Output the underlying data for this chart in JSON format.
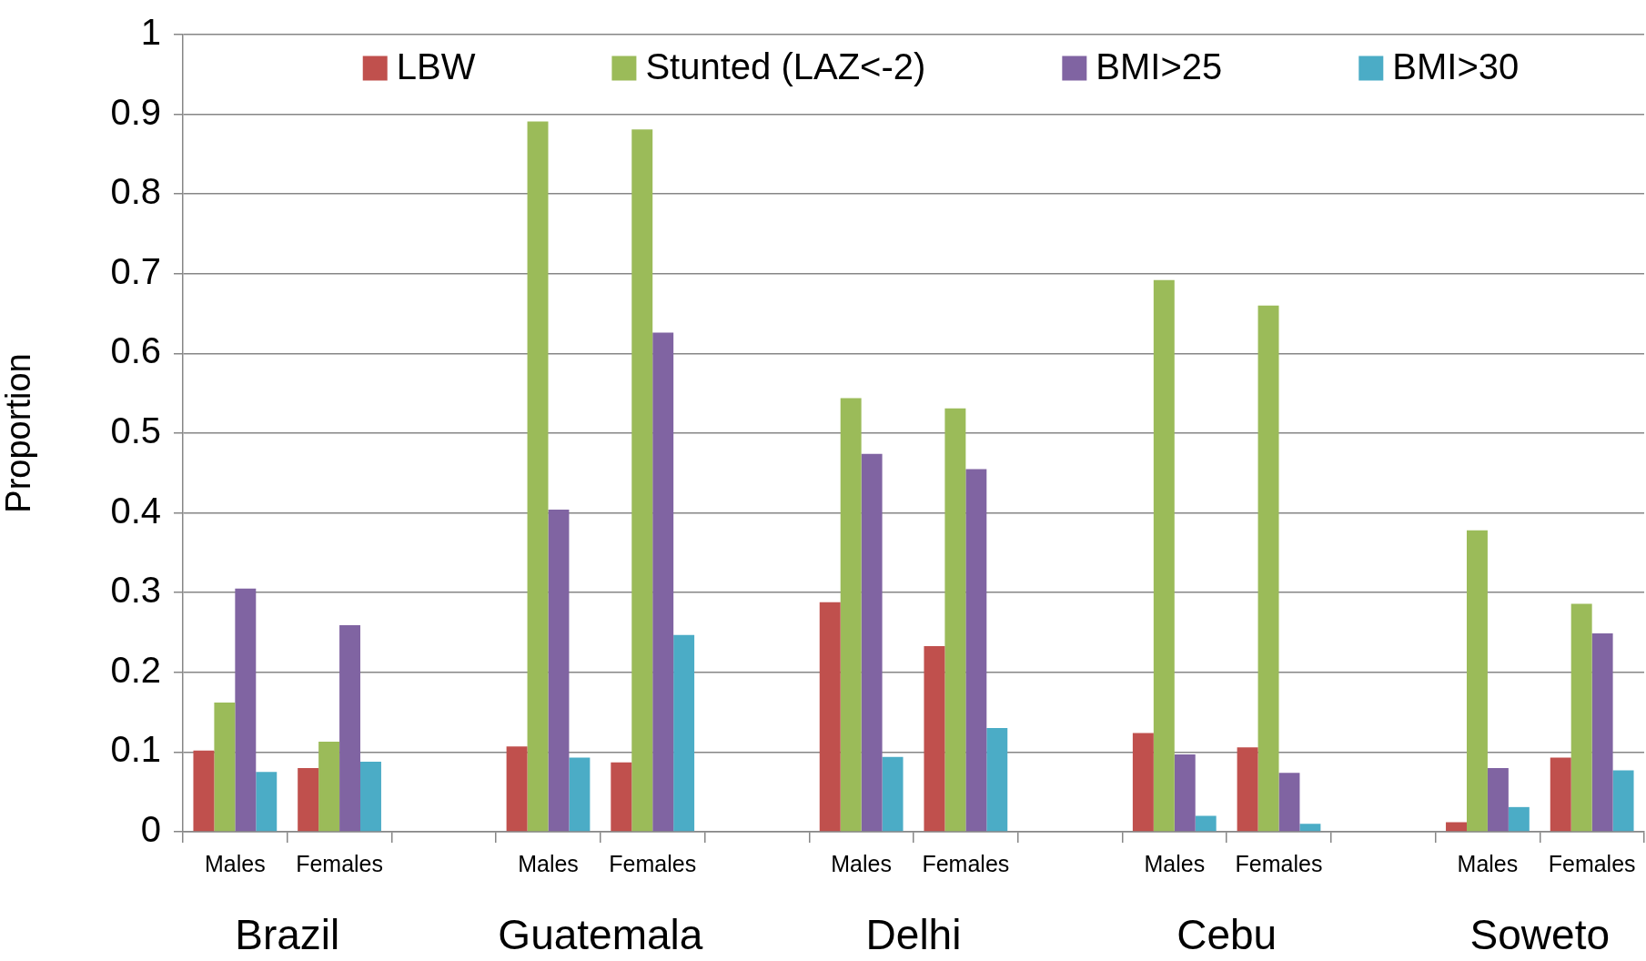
{
  "chart_data": {
    "type": "bar",
    "ylabel": "Proportion",
    "categories": [
      "Males",
      "Females",
      null,
      "Males",
      "Females",
      null,
      "Males",
      "Females",
      null,
      "Males",
      "Females",
      null,
      "Males",
      "Females"
    ],
    "series": [
      {
        "name": "LBW",
        "color": "#c0504d",
        "values": [
          0.102,
          0.08,
          null,
          0.107,
          0.087,
          null,
          0.288,
          0.233,
          null,
          0.124,
          0.106,
          null,
          0.012,
          0.093
        ]
      },
      {
        "name": "Stunted (LAZ<-2)",
        "color": "#9bbb59",
        "values": [
          0.162,
          0.113,
          null,
          0.891,
          0.881,
          null,
          0.544,
          0.531,
          null,
          0.692,
          0.66,
          null,
          0.378,
          0.286
        ]
      },
      {
        "name": "BMI>25",
        "color": "#8064a2",
        "values": [
          0.305,
          0.259,
          null,
          0.404,
          0.626,
          null,
          0.474,
          0.455,
          null,
          0.097,
          0.074,
          null,
          0.08,
          0.249
        ]
      },
      {
        "name": "BMI>30",
        "color": "#4bacc6",
        "values": [
          0.075,
          0.088,
          null,
          0.093,
          0.247,
          null,
          0.094,
          0.13,
          null,
          0.02,
          0.01,
          null,
          0.031,
          0.077
        ]
      }
    ],
    "ylim": [
      0,
      1
    ],
    "yticks": [
      0,
      0.1,
      0.2,
      0.3,
      0.4,
      0.5,
      0.6,
      0.7,
      0.8,
      0.9,
      1
    ],
    "grid": "y",
    "legend": "top",
    "annotations": [
      "Brazil",
      "Guatemala",
      "Delhi",
      "Cebu",
      "Soweto"
    ]
  }
}
